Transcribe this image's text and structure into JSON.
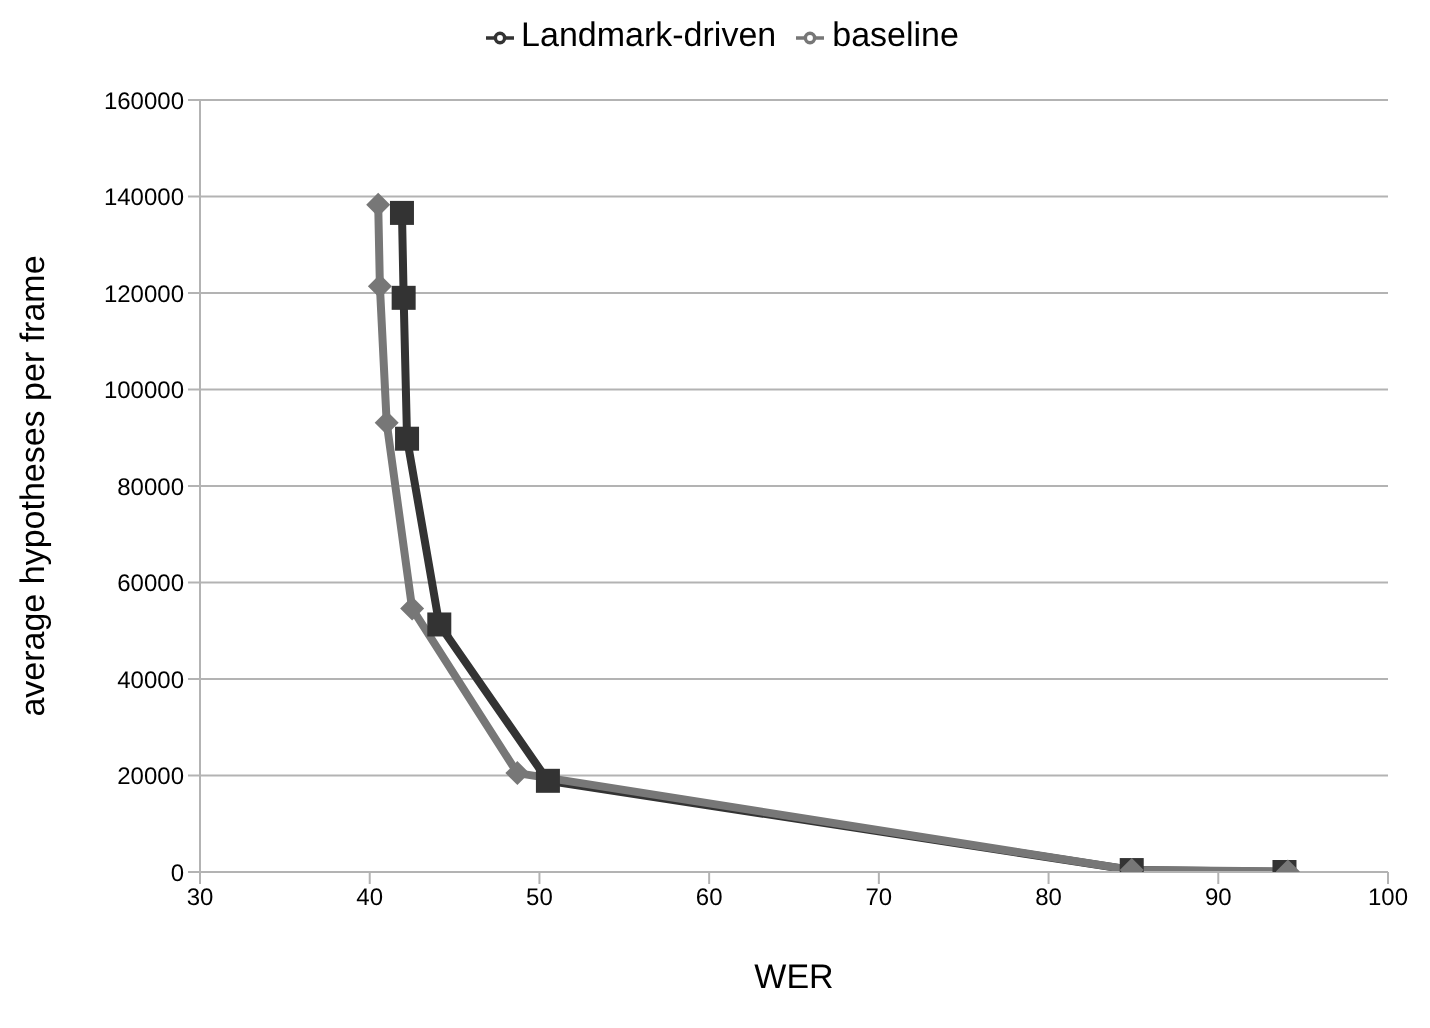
{
  "chart_data": {
    "type": "line",
    "xlabel": "WER",
    "ylabel": "average hypotheses per frame",
    "xlim": [
      30,
      100
    ],
    "xticks": [
      30,
      40,
      50,
      60,
      70,
      80,
      90,
      100
    ],
    "ylim": [
      0,
      160000
    ],
    "yticks": [
      0,
      20000,
      40000,
      60000,
      80000,
      100000,
      120000,
      140000,
      160000
    ],
    "grid": "y",
    "legend": "top",
    "line_style": "solid",
    "series": [
      {
        "name": "Landmark-driven",
        "color": "#333333",
        "marker": "square",
        "x": [
          41.9,
          42.0,
          42.2,
          44.1,
          50.5,
          84.9,
          93.9
        ],
        "values": [
          136600,
          119000,
          89800,
          51300,
          18900,
          400,
          0
        ]
      },
      {
        "name": "baseline",
        "color": "#777777",
        "marker": "diamond",
        "x": [
          40.5,
          40.6,
          41.0,
          42.5,
          48.7,
          84.9,
          94.1
        ],
        "values": [
          138300,
          121400,
          93100,
          54600,
          20500,
          400,
          100
        ]
      }
    ]
  }
}
